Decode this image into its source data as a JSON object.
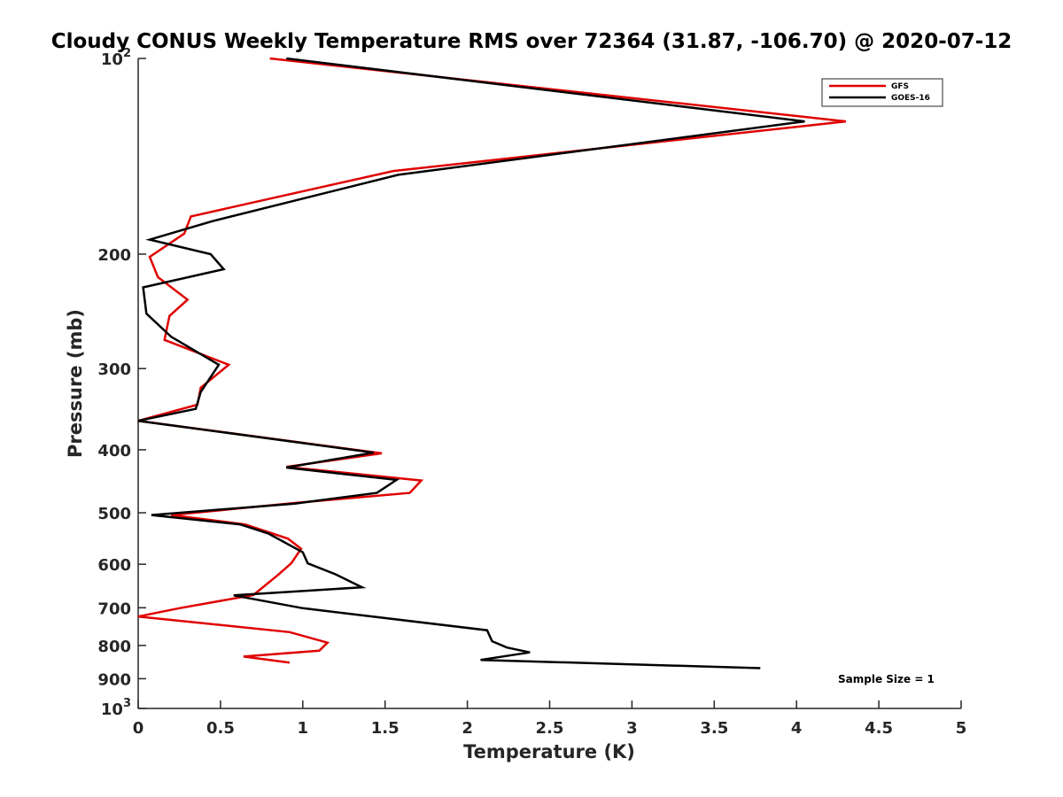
{
  "chart_data": {
    "type": "line",
    "title": "Cloudy CONUS Weekly Temperature RMS over 72364 (31.87, -106.70) @ 2020-07-12",
    "xlabel": "Temperature (K)",
    "ylabel": "Pressure (mb)",
    "xlim": [
      0,
      5
    ],
    "ylim": [
      100,
      1000
    ],
    "y_scale": "log",
    "y_reversed": true,
    "x_ticks": [
      "0",
      "0.5",
      "1",
      "1.5",
      "2",
      "2.5",
      "3",
      "3.5",
      "4",
      "4.5",
      "5"
    ],
    "y_ticks": [
      {
        "value": 100,
        "base": "10",
        "exp": "2"
      },
      {
        "value": 200,
        "label": "200"
      },
      {
        "value": 300,
        "label": "300"
      },
      {
        "value": 400,
        "label": "400"
      },
      {
        "value": 500,
        "label": "500"
      },
      {
        "value": 600,
        "label": "600"
      },
      {
        "value": 700,
        "label": "700"
      },
      {
        "value": 800,
        "label": "800"
      },
      {
        "value": 900,
        "label": "900"
      },
      {
        "value": 1000,
        "base": "10",
        "exp": "3"
      }
    ],
    "grid": false,
    "legend_position": "top-right",
    "annotation": "Sample Size = 1",
    "series": [
      {
        "name": "GFS",
        "color": "#e00000",
        "x": [
          0.8,
          4.3,
          1.55,
          0.32,
          0.28,
          0.07,
          0.12,
          0.3,
          0.19,
          0.16,
          0.55,
          0.38,
          0.36,
          0.0,
          1.48,
          0.9,
          1.72,
          1.65,
          0.95,
          0.2,
          0.65,
          0.91,
          0.99,
          0.93,
          0.85,
          0.7,
          0.25,
          0.0,
          0.92,
          1.15,
          1.1,
          0.64,
          0.92
        ],
        "y": [
          100,
          125,
          149,
          175,
          186,
          202,
          217,
          235,
          249,
          271,
          296,
          321,
          341,
          361,
          405,
          425,
          446,
          466,
          483,
          504,
          521,
          548,
          568,
          598,
          623,
          669,
          701,
          722,
          763,
          792,
          815,
          832,
          850
        ]
      },
      {
        "name": "GOES-16",
        "color": "#000000",
        "x": [
          0.9,
          4.05,
          1.58,
          0.45,
          0.07,
          0.44,
          0.52,
          0.03,
          0.05,
          0.2,
          0.49,
          0.38,
          0.35,
          0.0,
          1.43,
          0.9,
          1.57,
          1.45,
          0.95,
          0.08,
          0.62,
          0.79,
          1.0,
          1.03,
          1.2,
          1.36,
          0.58,
          1.0,
          2.12,
          2.15,
          2.24,
          2.38,
          2.08,
          3.78
        ],
        "y": [
          100,
          125,
          151,
          178,
          190,
          200,
          211,
          225,
          247,
          268,
          296,
          326,
          346,
          361,
          404,
          426,
          445,
          466,
          484,
          504,
          521,
          538,
          575,
          598,
          622,
          651,
          670,
          701,
          758,
          788,
          806,
          820,
          842,
          867
        ]
      }
    ]
  }
}
